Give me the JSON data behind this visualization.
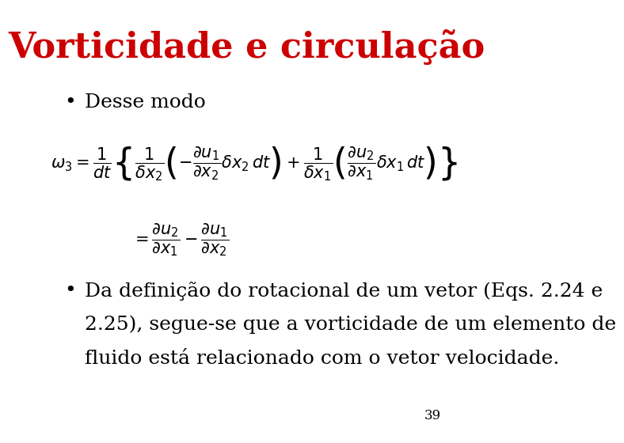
{
  "title": "Vorticidade e circulação",
  "title_color": "#cc0000",
  "title_fontsize": 32,
  "title_font": "serif",
  "background_color": "#ffffff",
  "bullet1": "Desse modo",
  "bullet2_line1": "Da definição do rotacional de um vetor (Eqs. 2.24 e",
  "bullet2_line2": "2.25), segue-se que a vorticidade de um elemento de",
  "bullet2_line3": "fluido está relacionado com o vetor velocidade.",
  "page_number": "39",
  "text_color": "#000000",
  "bullet_fontsize": 18,
  "eq_fontsize": 15,
  "body_font": "serif"
}
